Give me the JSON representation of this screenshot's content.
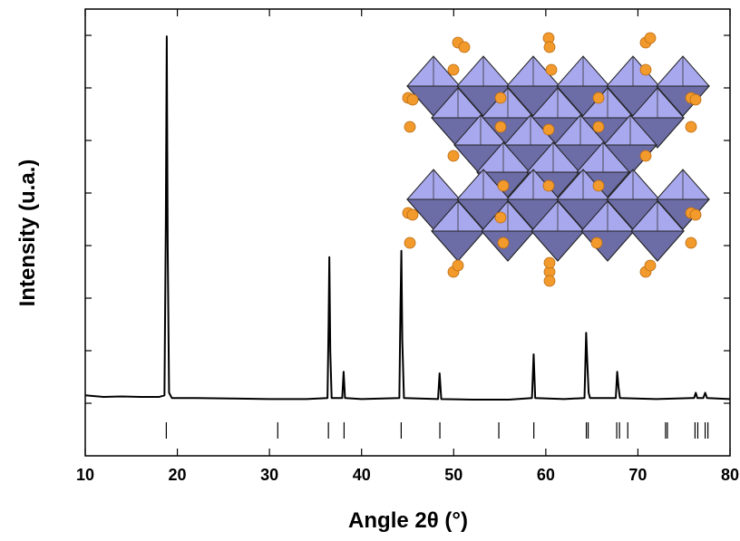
{
  "chart_data": {
    "type": "line",
    "xlabel": "Angle 2θ (°)",
    "ylabel": "Intensity (u.a.)",
    "x": [
      10,
      12,
      14,
      16,
      18,
      18.6,
      18.75,
      18.85,
      18.95,
      19.1,
      19.4,
      22,
      26,
      30,
      34,
      36.3,
      36.42,
      36.5,
      36.6,
      36.75,
      37.9,
      38.05,
      38.2,
      40,
      44.1,
      44.22,
      44.32,
      44.42,
      44.6,
      48.3,
      48.47,
      48.65,
      52,
      56,
      58.5,
      58.68,
      58.85,
      62,
      64.2,
      64.38,
      64.5,
      64.65,
      64.8,
      67.6,
      67.75,
      67.9,
      68.05,
      72,
      76.1,
      76.28,
      76.45,
      77.1,
      77.3,
      77.5,
      80
    ],
    "values": [
      1.15,
      1.12,
      1.13,
      1.12,
      1.12,
      1.15,
      4.5,
      7.98,
      4.0,
      1.2,
      1.1,
      1.1,
      1.09,
      1.08,
      1.08,
      1.1,
      2.5,
      3.78,
      2.0,
      1.1,
      1.1,
      1.6,
      1.1,
      1.08,
      1.1,
      2.8,
      3.9,
      2.2,
      1.1,
      1.08,
      1.57,
      1.08,
      1.07,
      1.07,
      1.1,
      1.93,
      1.1,
      1.08,
      1.1,
      2.34,
      1.8,
      1.2,
      1.1,
      1.1,
      1.6,
      1.3,
      1.1,
      1.08,
      1.1,
      1.2,
      1.1,
      1.1,
      1.2,
      1.1,
      1.08
    ],
    "color": "#000000",
    "reference_positions": [
      18.8,
      30.9,
      36.4,
      38.1,
      44.3,
      48.5,
      54.9,
      58.7,
      64.4,
      64.6,
      67.7,
      68.0,
      68.9,
      73.0,
      73.2,
      76.2,
      76.5,
      77.3,
      77.6
    ],
    "xlim": [
      10,
      80
    ],
    "xticks": [
      10,
      20,
      30,
      40,
      50,
      60,
      70,
      80
    ],
    "ylim": [
      0,
      8.5
    ],
    "yticks": [
      1,
      2,
      3,
      4,
      5,
      6,
      7,
      8
    ]
  }
}
